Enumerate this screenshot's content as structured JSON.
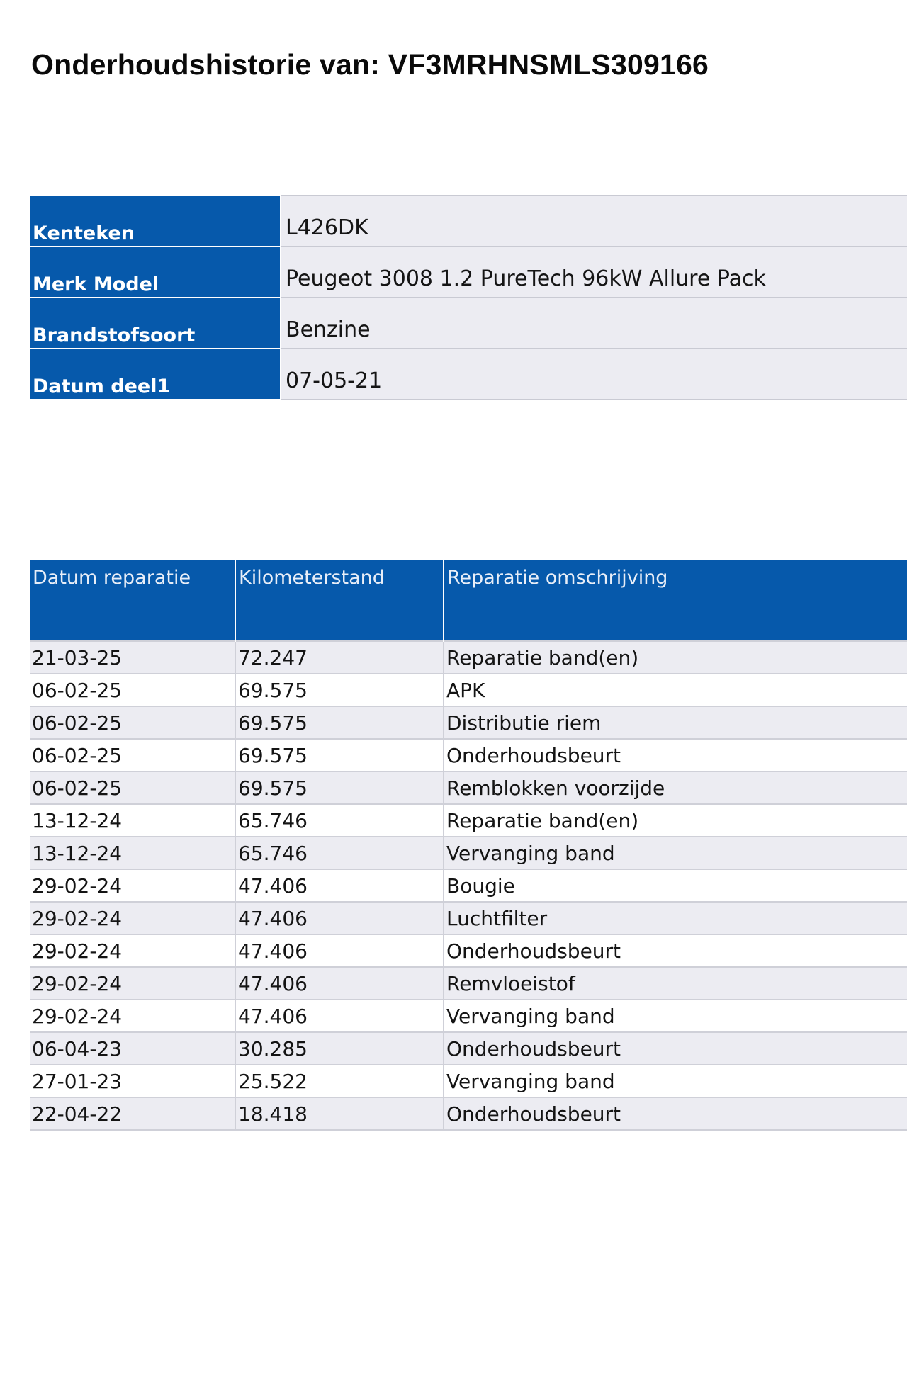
{
  "document": {
    "title": "Onderhoudshistorie van: VF3MRHNSMLS309166"
  },
  "vehicle": [
    {
      "label": "Kenteken",
      "value": "L426DK"
    },
    {
      "label": "Merk Model",
      "value": "Peugeot 3008 1.2 PureTech 96kW Allure Pack"
    },
    {
      "label": "Brandstofsoort",
      "value": "Benzine"
    },
    {
      "label": "Datum deel1",
      "value": "07-05-21"
    }
  ],
  "history": {
    "headers": [
      "Datum reparatie",
      "Kilometerstand",
      "Reparatie omschrijving"
    ],
    "rows": [
      [
        "21-03-25",
        "72.247",
        "Reparatie band(en)"
      ],
      [
        "06-02-25",
        "69.575",
        "APK"
      ],
      [
        "06-02-25",
        "69.575",
        "Distributie riem"
      ],
      [
        "06-02-25",
        "69.575",
        "Onderhoudsbeurt"
      ],
      [
        "06-02-25",
        "69.575",
        "Remblokken voorzijde"
      ],
      [
        "13-12-24",
        "65.746",
        "Reparatie band(en)"
      ],
      [
        "13-12-24",
        "65.746",
        "Vervanging band"
      ],
      [
        "29-02-24",
        "47.406",
        "Bougie"
      ],
      [
        "29-02-24",
        "47.406",
        "Luchtfilter"
      ],
      [
        "29-02-24",
        "47.406",
        "Onderhoudsbeurt"
      ],
      [
        "29-02-24",
        "47.406",
        "Remvloeistof"
      ],
      [
        "29-02-24",
        "47.406",
        "Vervanging band"
      ],
      [
        "06-04-23",
        "30.285",
        "Onderhoudsbeurt"
      ],
      [
        "27-01-23",
        "25.522",
        "Vervanging band"
      ],
      [
        "22-04-22",
        "18.418",
        "Onderhoudsbeurt"
      ]
    ]
  },
  "colors": {
    "header_blue": "#0659ab",
    "row_shade": "#ececf2",
    "border_gray": "#cfd0d8"
  }
}
